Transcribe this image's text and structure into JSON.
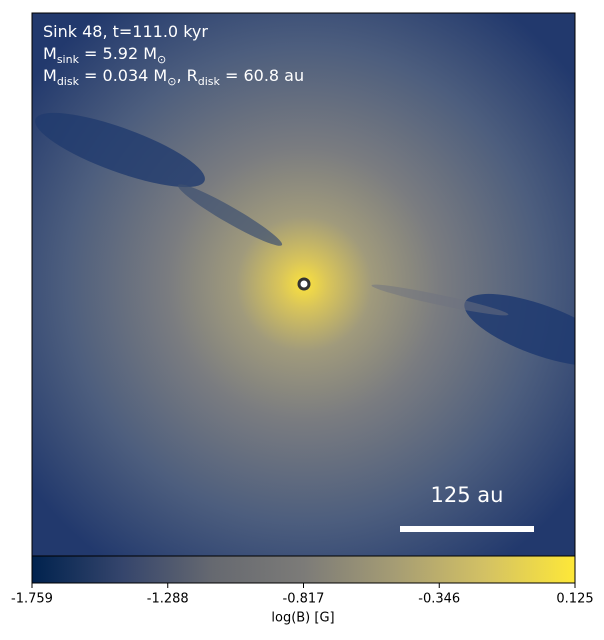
{
  "chart_data": {
    "type": "image",
    "annotations": [
      [
        {
          "text": "Sink 48, t=111.0 kyr"
        }
      ],
      [
        {
          "text": "M"
        },
        {
          "sub": "sink"
        },
        {
          "text": " = 5.92 M"
        },
        {
          "sub": "⊙"
        }
      ],
      [
        {
          "text": "M"
        },
        {
          "sub": "disk"
        },
        {
          "text": " = 0.034 M"
        },
        {
          "sub": "⊙"
        },
        {
          "text": ", R"
        },
        {
          "sub": "disk"
        },
        {
          "text": " = 60.8 au"
        }
      ]
    ],
    "scale_bar_label": "125 au",
    "colorbar": {
      "label": "log(B) [G]",
      "lim": [
        -1.759,
        0.125
      ],
      "ticks": [
        -1.759,
        -1.288,
        -0.817,
        -0.346,
        0.125
      ],
      "colors": [
        "#00224e",
        "#35456c",
        "#666970",
        "#7c7b78",
        "#a59c74",
        "#d3c164",
        "#fee838"
      ]
    }
  }
}
